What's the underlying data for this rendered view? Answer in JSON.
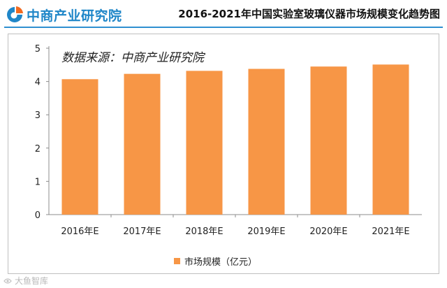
{
  "header": {
    "brand": "中商产业研究院",
    "title": "2016-2021年中国实验室玻璃仪器市场规模变化趋势图"
  },
  "chart_data": {
    "type": "bar",
    "categories": [
      "2016年E",
      "2017年E",
      "2018年E",
      "2019年E",
      "2020年E",
      "2021年E"
    ],
    "series": [
      {
        "name": "市场规模（亿元）",
        "values": [
          4.07,
          4.23,
          4.32,
          4.38,
          4.45,
          4.51
        ],
        "color": "#f79646"
      }
    ],
    "yticks": [
      "0",
      "1",
      "2",
      "3",
      "4",
      "5"
    ],
    "ylim": [
      0,
      5
    ],
    "grid": false,
    "legend": "bottom-center",
    "annotation": "数据来源：中商产业研究院"
  },
  "watermark": "大鱼智库"
}
